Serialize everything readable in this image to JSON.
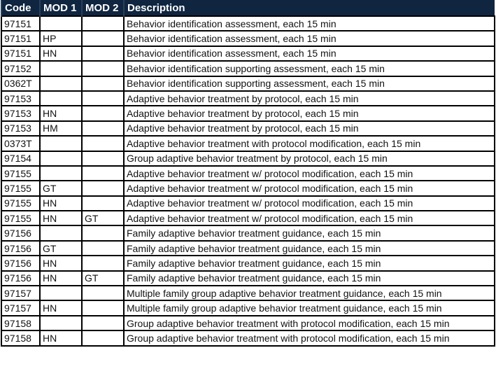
{
  "headers": [
    "Code",
    "MOD 1",
    "MOD 2",
    "Description"
  ],
  "rows": [
    [
      "97151",
      "",
      "",
      "Behavior identification assessment, each 15 min"
    ],
    [
      "97151",
      "HP",
      "",
      "Behavior identification assessment, each 15 min"
    ],
    [
      "97151",
      "HN",
      "",
      "Behavior identification assessment, each 15 min"
    ],
    [
      "97152",
      "",
      "",
      "Behavior identification supporting assessment, each 15 min"
    ],
    [
      "0362T",
      "",
      "",
      "Behavior identification supporting assessment, each 15 min"
    ],
    [
      "97153",
      "",
      "",
      "Adaptive behavior treatment by protocol, each 15 min"
    ],
    [
      "97153",
      "HN",
      "",
      "Adaptive behavior treatment by protocol, each 15 min"
    ],
    [
      "97153",
      "HM",
      "",
      "Adaptive behavior treatment by protocol, each 15 min"
    ],
    [
      "0373T",
      "",
      "",
      "Adaptive behavior treatment with protocol modification, each 15 min"
    ],
    [
      "97154",
      "",
      "",
      "Group adaptive behavior treatment by protocol, each 15 min"
    ],
    [
      "97155",
      "",
      "",
      "Adaptive behavior treatment w/ protocol modification, each 15 min"
    ],
    [
      "97155",
      "GT",
      "",
      "Adaptive behavior treatment w/ protocol modification, each 15 min"
    ],
    [
      "97155",
      "HN",
      "",
      "Adaptive behavior treatment w/ protocol modification, each 15 min"
    ],
    [
      "97155",
      "HN",
      "GT",
      "Adaptive behavior treatment w/ protocol modification, each 15 min"
    ],
    [
      "97156",
      "",
      "",
      "Family adaptive behavior treatment guidance, each 15 min"
    ],
    [
      "97156",
      "GT",
      "",
      "Family adaptive behavior treatment guidance, each 15 min"
    ],
    [
      "97156",
      "HN",
      "",
      "Family adaptive behavior treatment guidance, each 15 min"
    ],
    [
      "97156",
      "HN",
      "GT",
      "Family adaptive behavior treatment guidance, each 15 min"
    ],
    [
      "97157",
      "",
      "",
      "Multiple family group adaptive behavior treatment guidance, each 15 min"
    ],
    [
      "97157",
      "HN",
      "",
      "Multiple family group adaptive behavior treatment guidance, each 15 min"
    ],
    [
      "97158",
      "",
      "",
      "Group adaptive behavior treatment with protocol modification, each 15 min"
    ],
    [
      "97158",
      "HN",
      "",
      "Group adaptive behavior treatment with protocol modification, each 15 min"
    ]
  ]
}
